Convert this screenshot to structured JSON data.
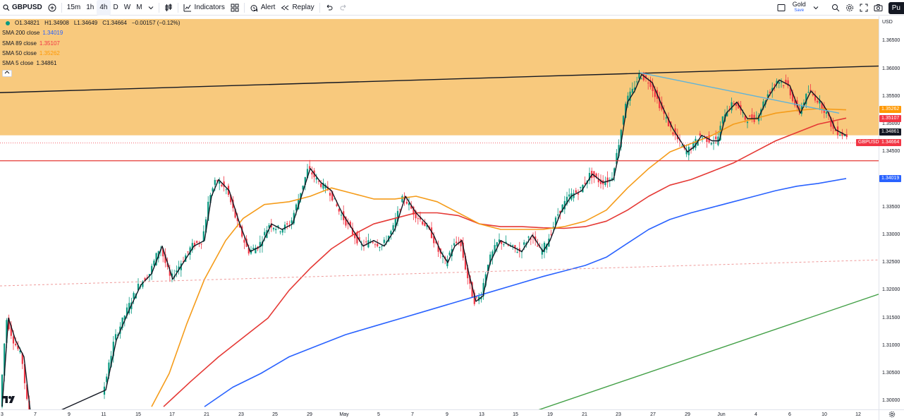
{
  "toolbar": {
    "symbol": "GBPUSD",
    "timeframes": [
      "15m",
      "1h",
      "4h",
      "D",
      "W",
      "M"
    ],
    "active_timeframe": "4h",
    "indicators_label": "Indicators",
    "alert_label": "Alert",
    "replay_label": "Replay",
    "layout_name": "Gold",
    "layout_status": "Save",
    "publish_label": "Pu"
  },
  "legend": {
    "ohlc": {
      "o": "O1.34821",
      "h": "H1.34908",
      "l": "L1.34649",
      "c": "C1.34664",
      "chg": "−0.00157 (−0.12%)"
    },
    "indicators": [
      {
        "label": "SMA 200 close",
        "value": "1.34019",
        "color": "#2962ff"
      },
      {
        "label": "SMA 89 close",
        "value": "1.35107",
        "color": "#f23645"
      },
      {
        "label": "SMA 50 close",
        "value": "1.35262",
        "color": "#ff9800"
      },
      {
        "label": "SMA 5 close",
        "value": "1.34861",
        "color": "#131722"
      }
    ]
  },
  "price_axis": {
    "currency": "USD",
    "labels": [
      "1.36500",
      "1.36000",
      "1.35500",
      "1.35000",
      "1.34500",
      "1.34000",
      "1.33500",
      "1.33000",
      "1.32500",
      "1.32000",
      "1.31500",
      "1.31000",
      "1.30500",
      "1.30000"
    ],
    "badges": [
      {
        "value": "1.35262",
        "color": "#ff9800"
      },
      {
        "value": "1.35107",
        "color": "#f23645"
      },
      {
        "value": "1.34861",
        "color": "#131722"
      },
      {
        "value": "1.34664",
        "color": "#f23645"
      },
      {
        "value": "1.34019",
        "color": "#2962ff"
      }
    ],
    "symbol_badge": "GBPUSD"
  },
  "time_axis": {
    "labels": [
      "3",
      "7",
      "9",
      "11",
      "15",
      "17",
      "21",
      "23",
      "25",
      "29",
      "May",
      "5",
      "7",
      "9",
      "13",
      "15",
      "19",
      "21",
      "23",
      "27",
      "29",
      "Jun",
      "4",
      "6",
      "10",
      "12"
    ]
  },
  "colors": {
    "zone": "#f8c676",
    "up": "#089981",
    "down": "#f23645",
    "sma200": "#2962ff",
    "sma89": "#e53935",
    "sma50": "#f59c1a",
    "sma5": "#131722",
    "trend_black": "#131722",
    "trend_cyan": "#5fb3d9",
    "trend_green": "#43a047",
    "support_red": "#e53935"
  },
  "chart_data": {
    "type": "candlestick",
    "symbol": "GBPUSD",
    "interval": "4h",
    "ylim": [
      1.2985,
      1.3695
    ],
    "x_range": [
      "3 Apr",
      "12 Jun"
    ],
    "resistance_zone": [
      1.348,
      1.369
    ],
    "horizontal_support": 1.3434,
    "last_price": 1.34664,
    "trendlines": [
      {
        "name": "upper",
        "from": [
          0,
          1.3557
        ],
        "to": [
          1246,
          1.3605
        ]
      },
      {
        "name": "descending",
        "from": [
          908,
          1.3593
        ],
        "to": [
          1190,
          1.352
        ]
      },
      {
        "name": "lower-dashed",
        "from": [
          0,
          1.3208
        ],
        "to": [
          1246,
          1.3255
        ]
      },
      {
        "name": "rising",
        "from": [
          715,
          1.2963
        ],
        "to": [
          1246,
          1.3193
        ]
      }
    ],
    "close_path": [
      [
        3,
        1.299
      ],
      [
        12,
        1.315
      ],
      [
        22,
        1.311
      ],
      [
        34,
        1.308
      ],
      [
        45,
        1.296
      ],
      [
        150,
        1.302
      ],
      [
        165,
        1.311
      ],
      [
        185,
        1.317
      ],
      [
        200,
        1.321
      ],
      [
        215,
        1.323
      ],
      [
        230,
        1.328
      ],
      [
        245,
        1.322
      ],
      [
        260,
        1.325
      ],
      [
        275,
        1.328
      ],
      [
        290,
        1.329
      ],
      [
        300,
        1.337
      ],
      [
        310,
        1.34
      ],
      [
        325,
        1.338
      ],
      [
        340,
        1.332
      ],
      [
        355,
        1.327
      ],
      [
        370,
        1.328
      ],
      [
        385,
        1.332
      ],
      [
        400,
        1.331
      ],
      [
        415,
        1.332
      ],
      [
        430,
        1.338
      ],
      [
        440,
        1.342
      ],
      [
        455,
        1.3395
      ],
      [
        470,
        1.338
      ],
      [
        485,
        1.334
      ],
      [
        500,
        1.331
      ],
      [
        515,
        1.328
      ],
      [
        530,
        1.329
      ],
      [
        545,
        1.328
      ],
      [
        560,
        1.331
      ],
      [
        575,
        1.337
      ],
      [
        590,
        1.334
      ],
      [
        605,
        1.332
      ],
      [
        615,
        1.33
      ],
      [
        625,
        1.327
      ],
      [
        635,
        1.325
      ],
      [
        645,
        1.328
      ],
      [
        655,
        1.329
      ],
      [
        665,
        1.323
      ],
      [
        675,
        1.318
      ],
      [
        685,
        1.319
      ],
      [
        695,
        1.325
      ],
      [
        710,
        1.329
      ],
      [
        725,
        1.328
      ],
      [
        740,
        1.327
      ],
      [
        755,
        1.33
      ],
      [
        770,
        1.327
      ],
      [
        780,
        1.329
      ],
      [
        795,
        1.334
      ],
      [
        810,
        1.337
      ],
      [
        825,
        1.338
      ],
      [
        840,
        1.341
      ],
      [
        855,
        1.3395
      ],
      [
        870,
        1.34
      ],
      [
        880,
        1.346
      ],
      [
        890,
        1.354
      ],
      [
        900,
        1.356
      ],
      [
        910,
        1.359
      ],
      [
        925,
        1.3575
      ],
      [
        940,
        1.353
      ],
      [
        955,
        1.349
      ],
      [
        965,
        1.347
      ],
      [
        975,
        1.345
      ],
      [
        985,
        1.346
      ],
      [
        995,
        1.348
      ],
      [
        1010,
        1.347
      ],
      [
        1020,
        1.347
      ],
      [
        1030,
        1.352
      ],
      [
        1045,
        1.354
      ],
      [
        1060,
        1.351
      ],
      [
        1075,
        1.351
      ],
      [
        1090,
        1.355
      ],
      [
        1105,
        1.358
      ],
      [
        1120,
        1.357
      ],
      [
        1135,
        1.352
      ],
      [
        1150,
        1.356
      ],
      [
        1165,
        1.354
      ],
      [
        1175,
        1.352
      ],
      [
        1185,
        1.349
      ],
      [
        1200,
        1.348
      ]
    ],
    "sma50": [
      [
        215,
        1.299
      ],
      [
        240,
        1.305
      ],
      [
        265,
        1.314
      ],
      [
        290,
        1.322
      ],
      [
        320,
        1.329
      ],
      [
        345,
        1.333
      ],
      [
        375,
        1.3355
      ],
      [
        410,
        1.336
      ],
      [
        440,
        1.337
      ],
      [
        470,
        1.3385
      ],
      [
        500,
        1.3375
      ],
      [
        530,
        1.3365
      ],
      [
        560,
        1.3365
      ],
      [
        590,
        1.337
      ],
      [
        620,
        1.336
      ],
      [
        650,
        1.334
      ],
      [
        680,
        1.332
      ],
      [
        710,
        1.331
      ],
      [
        740,
        1.331
      ],
      [
        770,
        1.331
      ],
      [
        800,
        1.3315
      ],
      [
        830,
        1.3325
      ],
      [
        860,
        1.3345
      ],
      [
        890,
        1.3385
      ],
      [
        920,
        1.342
      ],
      [
        950,
        1.345
      ],
      [
        980,
        1.3465
      ],
      [
        1010,
        1.348
      ],
      [
        1040,
        1.35
      ],
      [
        1070,
        1.351
      ],
      [
        1100,
        1.352
      ],
      [
        1130,
        1.3525
      ],
      [
        1160,
        1.3528
      ],
      [
        1200,
        1.3526
      ]
    ],
    "sma89": [
      [
        232,
        1.299
      ],
      [
        270,
        1.3035
      ],
      [
        310,
        1.308
      ],
      [
        350,
        1.312
      ],
      [
        380,
        1.315
      ],
      [
        410,
        1.32
      ],
      [
        440,
        1.324
      ],
      [
        470,
        1.3275
      ],
      [
        500,
        1.33
      ],
      [
        530,
        1.332
      ],
      [
        560,
        1.333
      ],
      [
        590,
        1.334
      ],
      [
        620,
        1.334
      ],
      [
        650,
        1.3335
      ],
      [
        680,
        1.332
      ],
      [
        710,
        1.3315
      ],
      [
        740,
        1.3315
      ],
      [
        770,
        1.3313
      ],
      [
        800,
        1.3312
      ],
      [
        830,
        1.3315
      ],
      [
        860,
        1.3325
      ],
      [
        890,
        1.3345
      ],
      [
        920,
        1.337
      ],
      [
        950,
        1.339
      ],
      [
        980,
        1.34
      ],
      [
        1010,
        1.3415
      ],
      [
        1040,
        1.343
      ],
      [
        1070,
        1.345
      ],
      [
        1100,
        1.347
      ],
      [
        1130,
        1.3485
      ],
      [
        1160,
        1.35
      ],
      [
        1200,
        1.3511
      ]
    ],
    "sma200": [
      [
        290,
        1.299
      ],
      [
        330,
        1.3025
      ],
      [
        370,
        1.305
      ],
      [
        410,
        1.308
      ],
      [
        450,
        1.31
      ],
      [
        490,
        1.312
      ],
      [
        530,
        1.3135
      ],
      [
        570,
        1.315
      ],
      [
        610,
        1.3165
      ],
      [
        650,
        1.318
      ],
      [
        690,
        1.3195
      ],
      [
        730,
        1.321
      ],
      [
        770,
        1.3225
      ],
      [
        800,
        1.3235
      ],
      [
        830,
        1.3245
      ],
      [
        860,
        1.326
      ],
      [
        890,
        1.3285
      ],
      [
        920,
        1.331
      ],
      [
        950,
        1.3328
      ],
      [
        980,
        1.334
      ],
      [
        1010,
        1.335
      ],
      [
        1040,
        1.336
      ],
      [
        1070,
        1.337
      ],
      [
        1100,
        1.338
      ],
      [
        1130,
        1.3388
      ],
      [
        1160,
        1.3393
      ],
      [
        1200,
        1.3402
      ]
    ]
  }
}
